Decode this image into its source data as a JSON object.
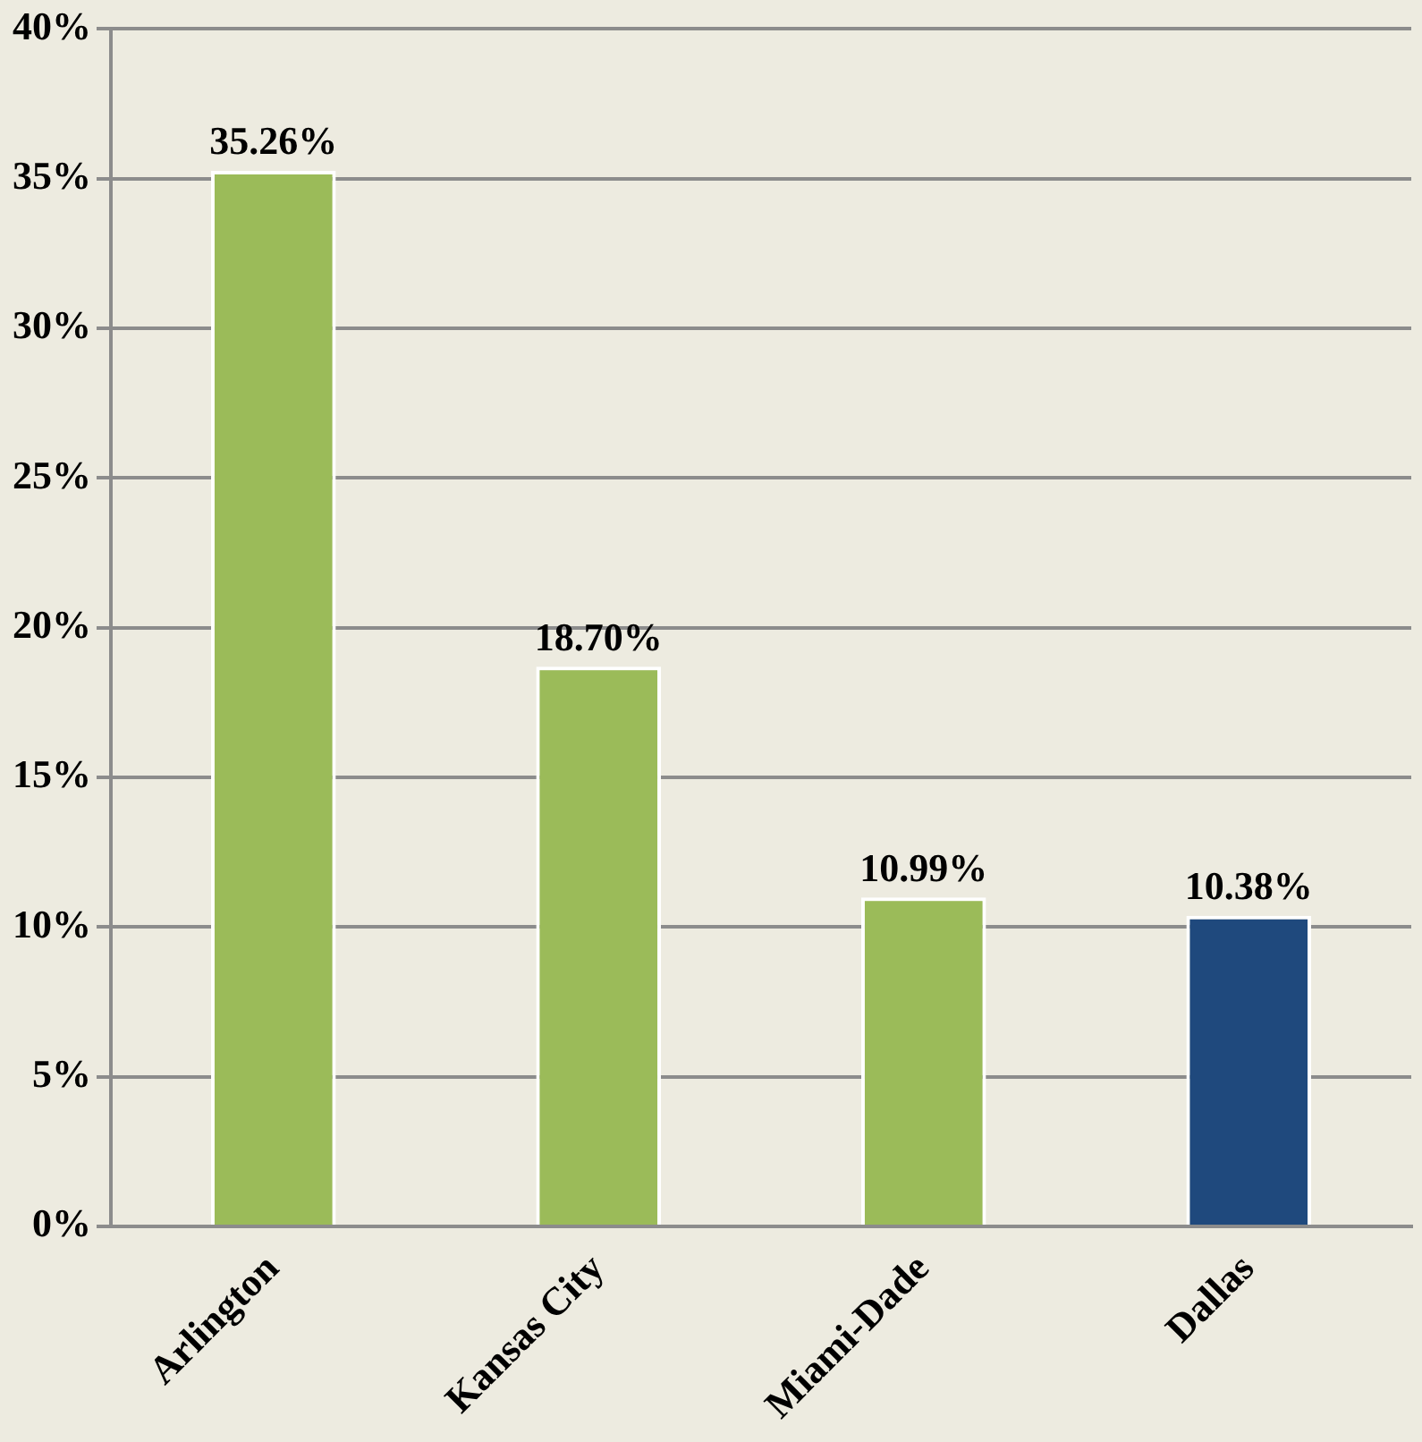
{
  "chart_data": {
    "type": "bar",
    "categories": [
      "Arlington",
      "Kansas City",
      "Miami-Dade",
      "Dallas"
    ],
    "values": [
      35.26,
      18.7,
      10.99,
      10.38
    ],
    "colors": [
      "#9bbb59",
      "#9bbb59",
      "#9bbb59",
      "#1f497d"
    ],
    "value_labels": [
      "35.26%",
      "18.70%",
      "10.99%",
      "10.38%"
    ],
    "ylim": [
      0,
      40
    ],
    "yticks": [
      {
        "value": 0,
        "label": "0%"
      },
      {
        "value": 5,
        "label": "5%"
      },
      {
        "value": 10,
        "label": "10%"
      },
      {
        "value": 15,
        "label": "15%"
      },
      {
        "value": 20,
        "label": "20%"
      },
      {
        "value": 25,
        "label": "25%"
      },
      {
        "value": 30,
        "label": "30%"
      },
      {
        "value": 35,
        "label": "35%"
      },
      {
        "value": 40,
        "label": "40%"
      }
    ],
    "grid": "y",
    "legend": false
  }
}
